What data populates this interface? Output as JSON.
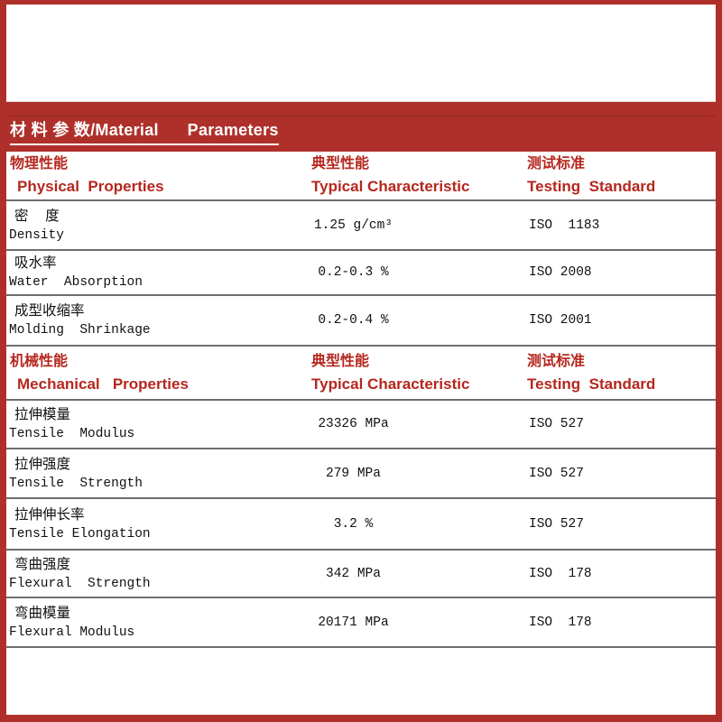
{
  "title": "材 料 参 数/Material      Parameters",
  "colors": {
    "frame_red": "#af302a",
    "header_text_red": "#b5271e",
    "row_line_gray": "#6e6e6e",
    "data_text_black": "#111111",
    "background_white": "#ffffff",
    "title_text_white": "#ffffff"
  },
  "physical": {
    "name_cn": "物理性能",
    "name_en": "Physical  Properties",
    "typical_cn": "典型性能",
    "typical_en": "Typical Characteristic",
    "standard_cn": "测试标准",
    "standard_en": "Testing  Standard",
    "rows": [
      {
        "cn": "密  度",
        "en": "Density",
        "value": "1.25 g/cm³",
        "standard": "ISO  1183"
      },
      {
        "cn": "吸水率",
        "en": "Water  Absorption",
        "value": "0.2-0.3 %",
        "standard": "ISO 2008"
      },
      {
        "cn": "成型收缩率",
        "en": "Molding  Shrinkage",
        "value": "0.2-0.4 %",
        "standard": "ISO 2001"
      }
    ]
  },
  "mechanical": {
    "name_cn": "机械性能",
    "name_en": "Mechanical   Properties",
    "typical_cn": "典型性能",
    "typical_en": "Typical Characteristic",
    "standard_cn": "测试标准",
    "standard_en": "Testing  Standard",
    "rows": [
      {
        "cn": "拉伸模量",
        "en": "Tensile  Modulus",
        "value": "23326 MPa",
        "standard": "ISO 527"
      },
      {
        "cn": "拉伸强度",
        "en": "Tensile  Strength",
        "value": "279 MPa",
        "standard": "ISO 527"
      },
      {
        "cn": "拉伸伸长率",
        "en": "Tensile Elongation",
        "value": "3.2 %",
        "standard": "ISO 527"
      },
      {
        "cn": "弯曲强度",
        "en": "Flexural  Strength",
        "value": "342 MPa",
        "standard": "ISO  178"
      },
      {
        "cn": "弯曲模量",
        "en": "Flexural Modulus",
        "value": "20171 MPa",
        "standard": "ISO  178"
      }
    ]
  }
}
